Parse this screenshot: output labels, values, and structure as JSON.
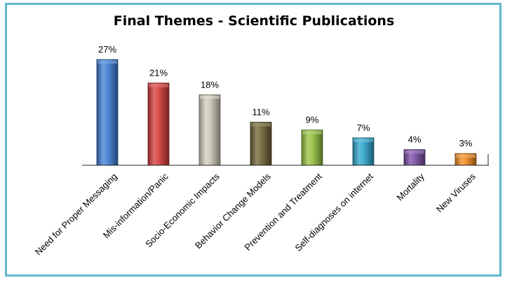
{
  "chart_data": {
    "type": "bar",
    "title": "Final Themes - Scientific Publications",
    "xlabel": "",
    "ylabel": "",
    "ylim": [
      0,
      27
    ],
    "grid": false,
    "legend": "none",
    "categories": [
      "Need for Proper Messaging",
      "Mis-information/Panic",
      "Socio-Economic Impacts",
      "Behavior Change Models",
      "Prevention and Treatment",
      "Self-diagnoses on internet",
      "Mortality",
      "New Viruses"
    ],
    "values": [
      27,
      21,
      18,
      11,
      9,
      7,
      4,
      3
    ],
    "value_labels": [
      "27%",
      "21%",
      "18%",
      "11%",
      "9%",
      "7%",
      "4%",
      "3%"
    ],
    "colors": [
      "#3f7fd6",
      "#d63b3b",
      "#cfcbb8",
      "#6e6334",
      "#95c23e",
      "#2ea6cc",
      "#7a4ea6",
      "#f08a1c"
    ]
  }
}
